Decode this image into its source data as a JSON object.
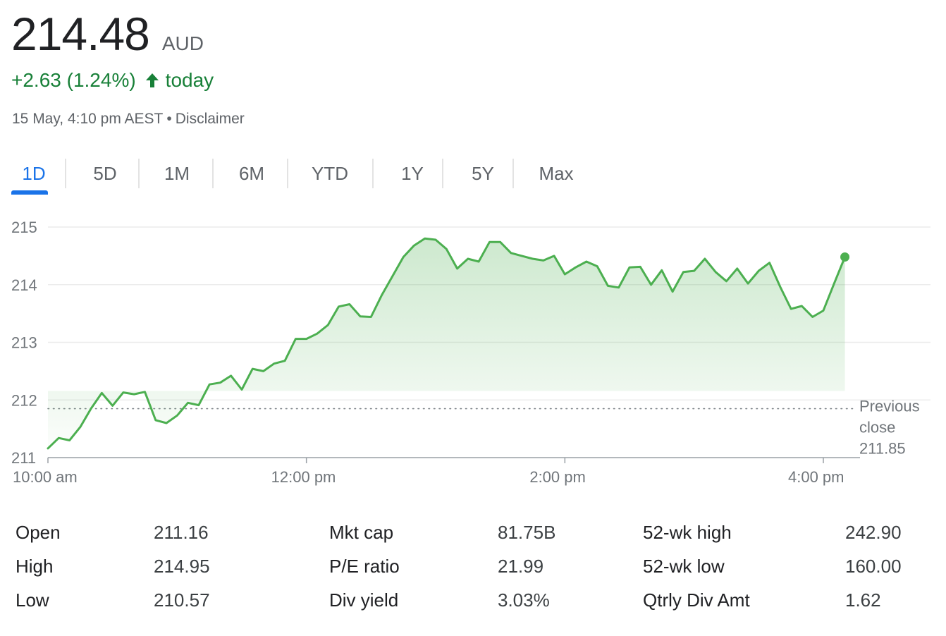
{
  "quote": {
    "price": "214.48",
    "currency": "AUD",
    "change": "+2.63 (1.24%)",
    "change_suffix": "today",
    "timestamp": "15 May, 4:10 pm AEST",
    "separator": "•",
    "disclaimer": "Disclaimer",
    "accent_up": "#188038"
  },
  "tabs": [
    "1D",
    "5D",
    "1M",
    "6M",
    "YTD",
    "1Y",
    "5Y",
    "Max"
  ],
  "active_tab": "1D",
  "chart_data": {
    "type": "area",
    "title": "",
    "xlabel": "",
    "ylabel": "",
    "x_ticks": [
      "10:00 am",
      "12:00 pm",
      "2:00 pm",
      "4:00 pm"
    ],
    "y_ticks": [
      211,
      212,
      213,
      214,
      215
    ],
    "ylim": [
      211,
      215.3
    ],
    "x_range_minutes": [
      "10:00",
      "16:10"
    ],
    "grid": true,
    "previous_close": {
      "label_line1": "Previous",
      "label_line2": "close",
      "value": 211.85
    },
    "series": [
      {
        "color": "#4caf50",
        "x": [
          "10:00",
          "10:05",
          "10:10",
          "10:15",
          "10:20",
          "10:25",
          "10:30",
          "10:35",
          "10:40",
          "10:45",
          "10:50",
          "10:55",
          "11:00",
          "11:05",
          "11:10",
          "11:15",
          "11:20",
          "11:25",
          "11:30",
          "11:35",
          "11:40",
          "11:45",
          "11:50",
          "11:55",
          "12:00",
          "12:05",
          "12:10",
          "12:15",
          "12:20",
          "12:25",
          "12:30",
          "12:35",
          "12:40",
          "12:45",
          "12:50",
          "12:55",
          "13:00",
          "13:05",
          "13:10",
          "13:15",
          "13:20",
          "13:25",
          "13:30",
          "13:35",
          "13:40",
          "13:45",
          "13:50",
          "13:55",
          "14:00",
          "14:05",
          "14:10",
          "14:15",
          "14:20",
          "14:25",
          "14:30",
          "14:35",
          "14:40",
          "14:45",
          "14:50",
          "14:55",
          "15:00",
          "15:05",
          "15:10",
          "15:15",
          "15:20",
          "15:25",
          "15:30",
          "15:35",
          "15:40",
          "15:45",
          "15:50",
          "15:55",
          "16:00",
          "16:05",
          "16:10"
        ],
        "y": [
          211.16,
          211.34,
          211.3,
          211.53,
          211.85,
          212.12,
          211.9,
          212.13,
          212.1,
          212.14,
          211.65,
          211.6,
          211.73,
          211.95,
          211.91,
          212.27,
          212.3,
          212.42,
          212.18,
          212.54,
          212.5,
          212.63,
          212.68,
          213.06,
          213.06,
          213.15,
          213.3,
          213.62,
          213.66,
          213.45,
          213.44,
          213.82,
          214.15,
          214.48,
          214.68,
          214.8,
          214.78,
          214.62,
          214.28,
          214.45,
          214.4,
          214.74,
          214.74,
          214.55,
          214.5,
          214.45,
          214.42,
          214.5,
          214.18,
          214.3,
          214.4,
          214.32,
          213.98,
          213.95,
          214.3,
          214.31,
          214.0,
          214.25,
          213.88,
          214.22,
          214.24,
          214.45,
          214.22,
          214.06,
          214.28,
          214.02,
          214.24,
          214.38,
          213.96,
          213.58,
          213.63,
          213.44,
          213.55,
          214.02,
          214.48
        ]
      }
    ]
  },
  "stats": [
    {
      "label": "Open",
      "value": "211.16"
    },
    {
      "label": "High",
      "value": "214.95"
    },
    {
      "label": "Low",
      "value": "210.57"
    },
    {
      "label": "Mkt cap",
      "value": "81.75B"
    },
    {
      "label": "P/E ratio",
      "value": "21.99"
    },
    {
      "label": "Div yield",
      "value": "3.03%"
    },
    {
      "label": "52-wk high",
      "value": "242.90"
    },
    {
      "label": "52-wk low",
      "value": "160.00"
    },
    {
      "label": "Qtrly Div Amt",
      "value": "1.62"
    }
  ]
}
